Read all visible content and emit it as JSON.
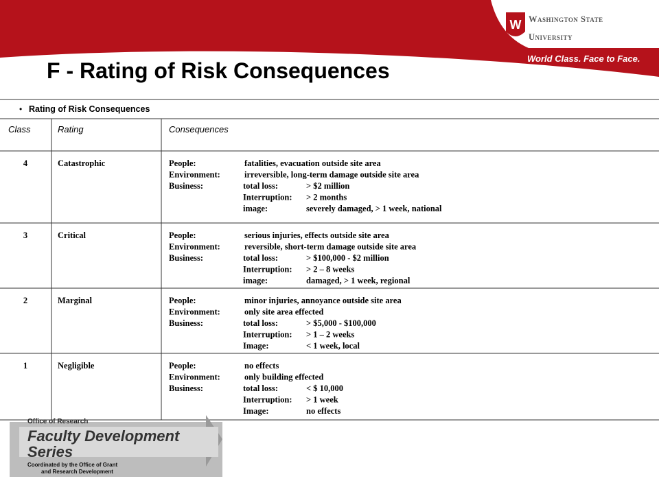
{
  "header": {
    "title": "F - Rating of Risk Consequences",
    "logo_line1": "Washington State",
    "logo_line2": "University",
    "tagline": "World Class. Face to Face."
  },
  "table": {
    "caption": "Rating of Risk Consequences",
    "columns": [
      "Class",
      "Rating",
      "Consequences"
    ],
    "rows": [
      {
        "class": "4",
        "rating": "Catastrophic",
        "lines": [
          {
            "label": "People:",
            "text": "fatalities, evacuation outside site area"
          },
          {
            "label": "Environment:",
            "text": "irreversible, long-term damage outside site area"
          },
          {
            "label": "Business:",
            "sub": "total loss:",
            "text": "> $2 million"
          },
          {
            "sub": "Interruption:",
            "text": "> 2 months"
          },
          {
            "sub": "image:",
            "text": "severely damaged, > 1 week, national"
          }
        ]
      },
      {
        "class": "3",
        "rating": "Critical",
        "lines": [
          {
            "label": "People:",
            "text": "serious injuries, effects outside site area"
          },
          {
            "label": "Environment:",
            "text": "reversible, short-term damage outside site area"
          },
          {
            "label": "Business:",
            "sub": "total loss:",
            "text": "> $100,000 - $2 million"
          },
          {
            "sub": "Interruption:",
            "text": "> 2 – 8 weeks"
          },
          {
            "sub": "image:",
            "text": "damaged, > 1 week, regional"
          }
        ]
      },
      {
        "class": "2",
        "rating": "Marginal",
        "lines": [
          {
            "label": "People:",
            "text": "minor injuries, annoyance outside site area"
          },
          {
            "label": "Environment:",
            "text": "only site area effected"
          },
          {
            "label": "Business:",
            "sub": "total loss:",
            "text": "> $5,000 - $100,000"
          },
          {
            "sub": "Interruption:",
            "text": "> 1 – 2 weeks"
          },
          {
            "sub": "Image:",
            "text": "< 1 week, local"
          }
        ]
      },
      {
        "class": "1",
        "rating": "Negligible",
        "lines": [
          {
            "label": "People:",
            "text": "no effects"
          },
          {
            "label": "Environment:",
            "text": "only building effected"
          },
          {
            "label": "Business:",
            "sub": "total loss:",
            "text": "< $ 10,000"
          },
          {
            "sub": "Interruption:",
            "text": "> 1 week"
          },
          {
            "sub": "Image:",
            "text": "no effects"
          }
        ]
      }
    ]
  },
  "footer": {
    "office": "Office of Research",
    "series_line1": "Faculty Development",
    "series_line2": "Series",
    "note_line1": "Coordinated by the Office of Grant",
    "note_line2": "and Research Development"
  }
}
